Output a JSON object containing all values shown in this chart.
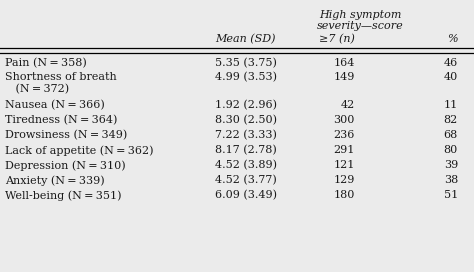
{
  "rows": [
    [
      "Pain (N = 358)",
      "5.35 (3.75)",
      "164",
      "46"
    ],
    [
      "Shortness of breath",
      "4.99 (3.53)",
      "149",
      "40"
    ],
    [
      "   (N = 372)",
      "",
      "",
      ""
    ],
    [
      "Nausea (N = 366)",
      "1.92 (2.96)",
      "42",
      "11"
    ],
    [
      "Tiredness (N = 364)",
      "8.30 (2.50)",
      "300",
      "82"
    ],
    [
      "Drowsiness (N = 349)",
      "7.22 (3.33)",
      "236",
      "68"
    ],
    [
      "Lack of appetite (N = 362)",
      "8.17 (2.78)",
      "291",
      "80"
    ],
    [
      "Depression (N = 310)",
      "4.52 (3.89)",
      "121",
      "39"
    ],
    [
      "Anxiety (N = 339)",
      "4.52 (3.77)",
      "129",
      "38"
    ],
    [
      "Well-being (N = 351)",
      "6.09 (3.49)",
      "180",
      "51"
    ]
  ],
  "header_line1_text": "High symptom",
  "header_line2_text": "severity—score",
  "header_col1": "Mean (SD)",
  "header_col2": "≥7 (n)",
  "header_col3": "%",
  "background_color": "#ebebeb",
  "text_color": "#1a1a1a",
  "fontsize": 8.0
}
